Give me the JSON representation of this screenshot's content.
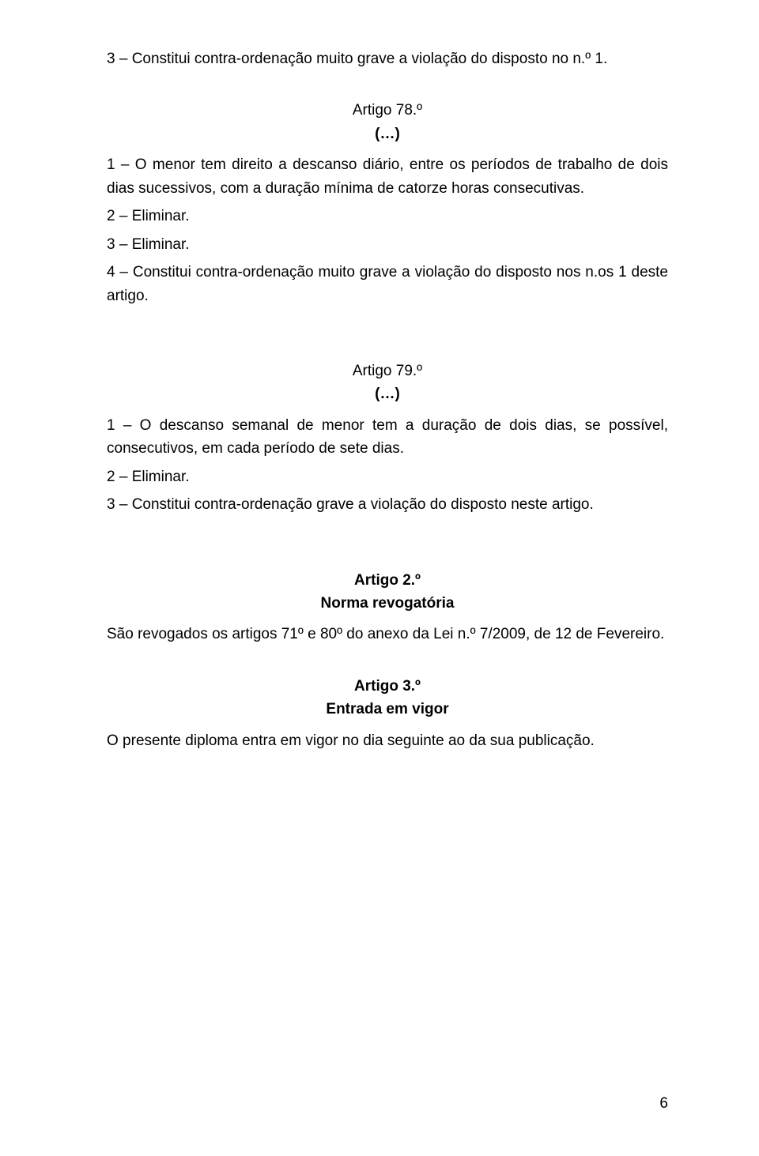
{
  "p1": "3 – Constitui contra-ordenação muito grave a violação do disposto no n.º 1.",
  "art78_title": "Artigo 78.º",
  "ellipsis": "(…)",
  "art78_p1": "1 – O menor tem direito a descanso diário, entre os períodos de trabalho de dois dias sucessivos, com a duração mínima de catorze horas consecutivas.",
  "art78_p2": "2 – Eliminar.",
  "art78_p3": "3 – Eliminar.",
  "art78_p4": "4 – Constitui contra-ordenação muito grave a violação do disposto nos n.os 1 deste artigo.",
  "art79_title": "Artigo 79.º",
  "art79_p1": "1 – O descanso semanal de menor tem a duração de dois dias, se possível, consecutivos, em cada período de sete dias.",
  "art79_p2": "2 – Eliminar.",
  "art79_p3": "3 – Constitui contra-ordenação grave a violação do disposto neste artigo.",
  "art2_title": "Artigo 2.º",
  "art2_subtitle": "Norma revogatória",
  "art2_p1": "São revogados os artigos 71º e 80º do anexo da Lei n.º 7/2009, de 12 de Fevereiro.",
  "art3_title": "Artigo 3.º",
  "art3_subtitle": "Entrada em vigor",
  "art3_p1": "O presente diploma entra em vigor no dia seguinte ao da sua publicação.",
  "page_num": "6"
}
